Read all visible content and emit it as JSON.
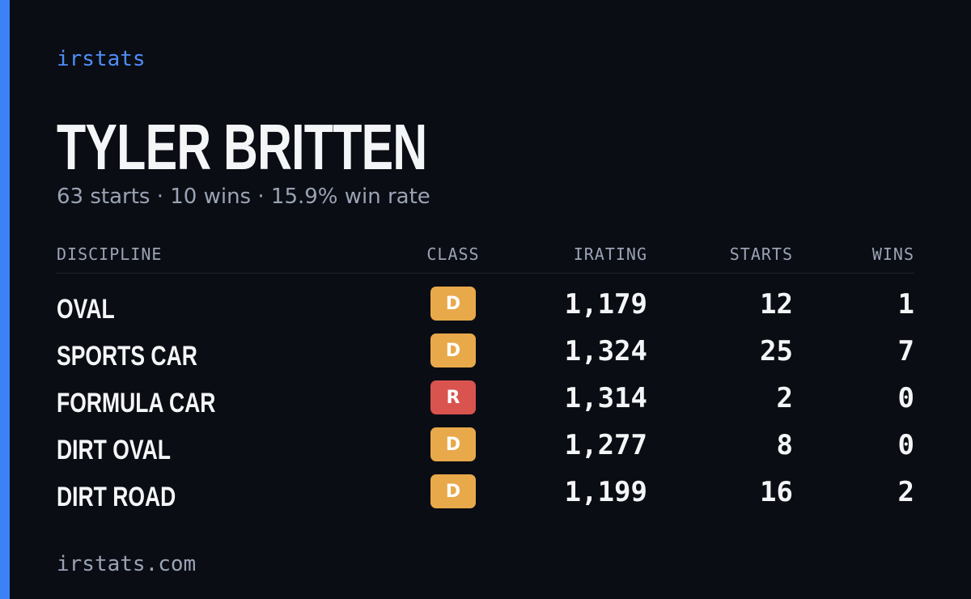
{
  "brand": "irstats",
  "driver": {
    "name": "TYLER BRITTEN",
    "summary": "63 starts · 10 wins · 15.9% win rate"
  },
  "table": {
    "headers": [
      "DISCIPLINE",
      "CLASS",
      "IRATING",
      "STARTS",
      "WINS"
    ],
    "rows": [
      {
        "discipline": "OVAL",
        "class": "D",
        "class_color": "#e8a94a",
        "irating": "1,179",
        "starts": "12",
        "wins": "1"
      },
      {
        "discipline": "SPORTS CAR",
        "class": "D",
        "class_color": "#e8a94a",
        "irating": "1,324",
        "starts": "25",
        "wins": "7"
      },
      {
        "discipline": "FORMULA CAR",
        "class": "R",
        "class_color": "#d9534f",
        "irating": "1,314",
        "starts": "2",
        "wins": "0"
      },
      {
        "discipline": "DIRT OVAL",
        "class": "D",
        "class_color": "#e8a94a",
        "irating": "1,277",
        "starts": "8",
        "wins": "0"
      },
      {
        "discipline": "DIRT ROAD",
        "class": "D",
        "class_color": "#e8a94a",
        "irating": "1,199",
        "starts": "16",
        "wins": "2"
      }
    ]
  },
  "footer": "irstats.com"
}
